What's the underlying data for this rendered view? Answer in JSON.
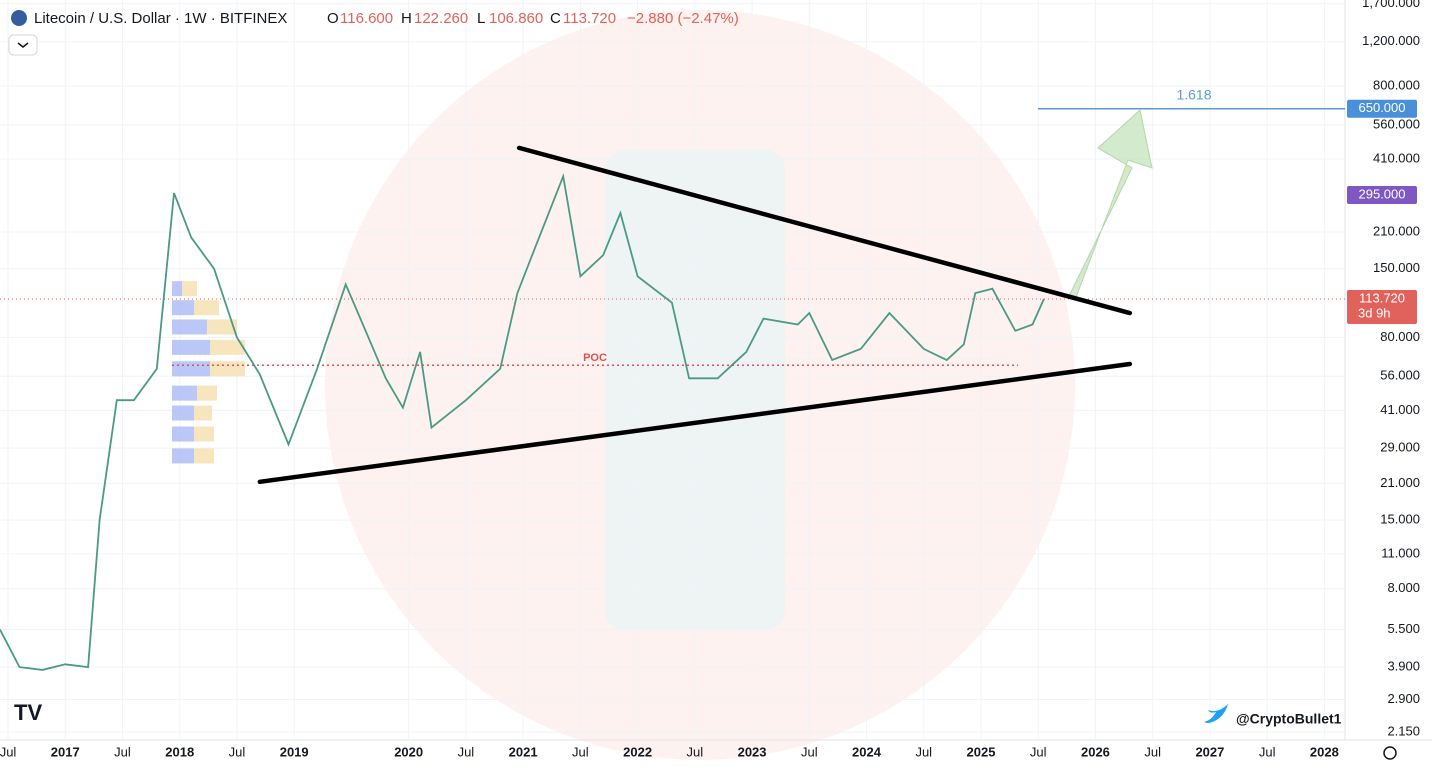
{
  "chart_data": {
    "type": "line",
    "header": {
      "symbol": "Litecoin / U.S. Dollar · 1W · BITFINEX",
      "o": "O",
      "open": "116.600",
      "h": "H",
      "high": "122.260",
      "l": "L",
      "low": "106.860",
      "c": "C",
      "close": "113.720",
      "change": "−2.880 (−2.47%)"
    },
    "yscale": "log",
    "grid": true,
    "xlim": [
      2016.43,
      2028.18
    ],
    "ylim": [
      2.0,
      1760
    ],
    "xticks": [
      {
        "value": 2016.5,
        "label": "Jul"
      },
      2017,
      {
        "value": 2017.5,
        "label": "Jul"
      },
      2018,
      {
        "value": 2018.5,
        "label": "Jul"
      },
      2019,
      2020,
      {
        "value": 2020.5,
        "label": "Jul"
      },
      2021,
      {
        "value": 2021.5,
        "label": "Jul"
      },
      2022,
      {
        "value": 2022.5,
        "label": "Jul"
      },
      2023,
      {
        "value": 2023.5,
        "label": "Jul"
      },
      2024,
      {
        "value": 2024.5,
        "label": "Jul"
      },
      2025,
      {
        "value": 2025.5,
        "label": "Jul"
      },
      2026,
      {
        "value": 2026.5,
        "label": "Jul"
      },
      2027,
      {
        "value": 2027.5,
        "label": "Jul"
      },
      2028
    ],
    "yticks": [
      {
        "value": 1700,
        "label": "1,700.000"
      },
      {
        "value": 1200,
        "label": "1,200.000"
      },
      {
        "value": 800,
        "label": "800.000"
      },
      {
        "value": 560,
        "label": "560.000"
      },
      {
        "value": 410,
        "label": "410.000"
      },
      {
        "value": 210,
        "label": "210.000"
      },
      {
        "value": 150,
        "label": "150.000"
      },
      {
        "value": 80,
        "label": "80.000"
      },
      {
        "value": 56,
        "label": "56.000"
      },
      {
        "value": 41,
        "label": "41.000"
      },
      {
        "value": 29,
        "label": "29.000"
      },
      {
        "value": 21,
        "label": "21.000"
      },
      {
        "value": 15,
        "label": "15.000"
      },
      {
        "value": 11,
        "label": "11.000"
      },
      {
        "value": 8,
        "label": "8.000"
      },
      {
        "value": 5.5,
        "label": "5.500"
      },
      {
        "value": 3.9,
        "label": "3.900"
      },
      {
        "value": 2.9,
        "label": "2.900"
      },
      {
        "value": 2.15,
        "label": "2.150"
      }
    ],
    "series": [
      {
        "name": "LTCUSD",
        "color": "#4a9a86",
        "x": [
          2016.43,
          2016.6,
          2016.8,
          2017.0,
          2017.2,
          2017.3,
          2017.45,
          2017.6,
          2017.8,
          2017.95,
          2018.1,
          2018.3,
          2018.5,
          2018.7,
          2018.95,
          2019.2,
          2019.45,
          2019.6,
          2019.8,
          2019.95,
          2020.1,
          2020.2,
          2020.5,
          2020.8,
          2020.95,
          2021.1,
          2021.35,
          2021.5,
          2021.7,
          2021.85,
          2022.0,
          2022.3,
          2022.45,
          2022.7,
          2022.95,
          2023.1,
          2023.4,
          2023.5,
          2023.7,
          2023.95,
          2024.2,
          2024.5,
          2024.7,
          2024.85,
          2024.95,
          2025.1,
          2025.3,
          2025.45,
          2025.55
        ],
        "values": [
          5.5,
          3.9,
          3.8,
          4.0,
          3.9,
          15,
          45,
          45,
          60,
          300,
          200,
          150,
          80,
          57,
          30,
          60,
          130,
          90,
          55,
          42,
          70,
          35,
          45,
          60,
          120,
          180,
          350,
          140,
          170,
          250,
          140,
          110,
          55,
          55,
          70,
          95,
          90,
          100,
          65,
          72,
          100,
          72,
          65,
          75,
          120,
          125,
          85,
          90,
          113.72
        ]
      }
    ],
    "trendlines": [
      {
        "x": [
          2020.965,
          2026.3
        ],
        "y": [
          454,
          100
        ]
      },
      {
        "x": [
          2018.7,
          2026.3
        ],
        "y": [
          21.3,
          62.7
        ]
      }
    ],
    "level": {
      "value": 650,
      "label": "1.618",
      "color": "#5b9bd5"
    },
    "poc": {
      "value": 62,
      "label": "POC"
    },
    "volume_profile": {
      "prices": [
        125,
        105,
        88,
        73,
        60,
        48,
        40,
        33,
        27
      ],
      "up": [
        10,
        22,
        35,
        38,
        38,
        25,
        22,
        22,
        22
      ],
      "down": [
        15,
        25,
        30,
        35,
        35,
        20,
        18,
        20,
        20
      ]
    },
    "price_tags": [
      {
        "value": 650,
        "label": "650.000",
        "color": "#4a90d9"
      },
      {
        "value": 295,
        "label": "295.000",
        "color": "#7e57c2"
      },
      {
        "value": 113.72,
        "label": "113.720",
        "color": "#e0625a"
      }
    ],
    "countdown": "3d 9h",
    "watermark": "@CryptoBullet1"
  }
}
